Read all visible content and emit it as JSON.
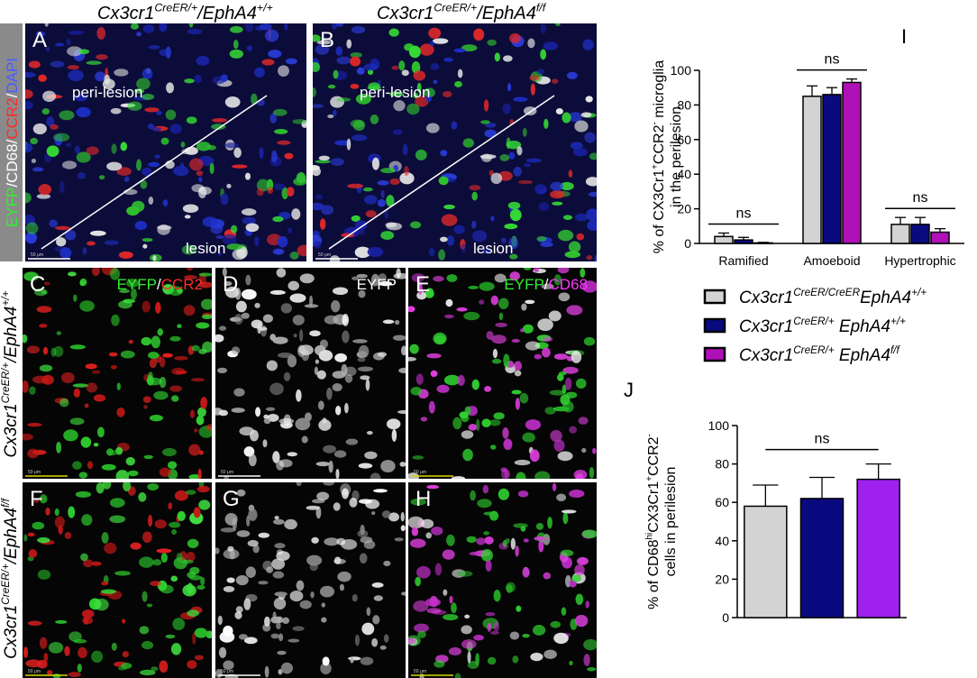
{
  "figure": {
    "headers": [
      [
        "Cx3cr1",
        "CreER/+",
        "/EphA4",
        "+/+"
      ],
      [
        "Cx3cr1",
        "CreER/+",
        "/EphA4",
        "f/f"
      ]
    ],
    "stain_label": [
      {
        "text": "EYFP",
        "color": "#33ee33"
      },
      {
        "text": "/",
        "color": "#ffffff"
      },
      {
        "text": "CD68",
        "color": "#ffffff"
      },
      {
        "text": "/",
        "color": "#ffffff"
      },
      {
        "text": "CCR2",
        "color": "#ff2a2a"
      },
      {
        "text": "/",
        "color": "#ffffff"
      },
      {
        "text": "DAPI",
        "color": "#4a5cff"
      }
    ],
    "row_labels": [
      [
        "Cx3cr1",
        "CreER/+",
        "/EphA4",
        "+/+"
      ],
      [
        "Cx3cr1",
        "CreER/+",
        "/EphA4",
        "f/f"
      ]
    ],
    "panels": [
      {
        "letter": "A",
        "labels": [
          "peri-lesion",
          "lesion"
        ],
        "scale": "50 μm"
      },
      {
        "letter": "B",
        "labels": [
          "peri-lesion",
          "lesion"
        ],
        "scale": "50 μm"
      },
      {
        "letter": "C",
        "stains": [
          {
            "text": "EYFP",
            "color": "#33ee33"
          },
          {
            "text": "/",
            "color": "#ffffff"
          },
          {
            "text": "CCR2",
            "color": "#ff2a2a"
          }
        ],
        "scale": "50 μm"
      },
      {
        "letter": "D",
        "stains": [
          {
            "text": "EYFP",
            "color": "#ffffff"
          }
        ],
        "scale": "50 μm"
      },
      {
        "letter": "E",
        "stains": [
          {
            "text": "EYFP",
            "color": "#33ee33"
          },
          {
            "text": "/",
            "color": "#ffffff"
          },
          {
            "text": "CD68",
            "color": "#ff33ff"
          }
        ],
        "scale": "50 μm"
      },
      {
        "letter": "F",
        "scale": "50 μm"
      },
      {
        "letter": "G",
        "scale": "50 μm"
      },
      {
        "letter": "H",
        "scale": "50 μm"
      }
    ]
  },
  "chart_data": [
    {
      "type": "bar",
      "letter": "I",
      "ylabel": [
        [
          "% of CX3Cr1",
          "+",
          "CCR2",
          "-",
          " microglia"
        ],
        [
          "in the perilesion"
        ]
      ],
      "categories": [
        "Ramified",
        "Amoeboid",
        "Hypertrophic"
      ],
      "series": [
        {
          "name": [
            "Cx3cr1",
            "CreER/CreER",
            "EphA4",
            "+/+"
          ],
          "color": "#d3d3d3",
          "values": [
            4,
            85,
            11
          ],
          "errors": [
            2,
            6,
            4
          ]
        },
        {
          "name": [
            "Cx3cr1",
            "CreER/+",
            " EphA4",
            "+/+"
          ],
          "color": "#0a0a80",
          "values": [
            2,
            86,
            11
          ],
          "errors": [
            1.5,
            4,
            4
          ]
        },
        {
          "name": [
            "Cx3cr1",
            "CreER/+",
            " EphA4",
            "f/f"
          ],
          "color": "#b010b8",
          "values": [
            0.3,
            93,
            6.5
          ],
          "errors": [
            0.3,
            2,
            2
          ]
        }
      ],
      "annotations": [
        "ns",
        "ns",
        "ns"
      ],
      "ylim": [
        0,
        100
      ],
      "yticks": [
        0,
        20,
        40,
        60,
        80,
        100
      ]
    },
    {
      "type": "bar",
      "letter": "J",
      "ylabel": [
        [
          "% of CD68",
          "hi",
          "CX3Cr1",
          "+",
          "CCR2",
          "-"
        ],
        [
          "cells in perilesion"
        ]
      ],
      "categories": [
        null,
        null,
        null
      ],
      "values": [
        58,
        62,
        72
      ],
      "errors": [
        11,
        11,
        8
      ],
      "colors": [
        "#d3d3d3",
        "#0a0a80",
        "#a020f0"
      ],
      "annotations": [
        "ns"
      ],
      "ylim": [
        0,
        100
      ],
      "yticks": [
        0,
        20,
        40,
        60,
        80,
        100
      ]
    }
  ]
}
